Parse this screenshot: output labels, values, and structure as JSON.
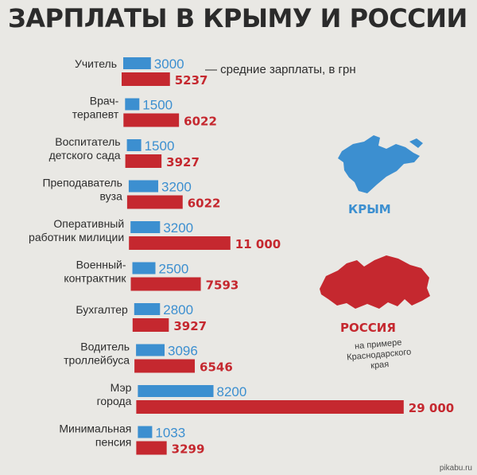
{
  "title": "ЗАРПЛАТЫ В КРЫМУ И РОССИИ",
  "note": "— средние зарплаты, в грн",
  "colors": {
    "crimea": "#3c8fd0",
    "russia": "#c5282f"
  },
  "legend": {
    "crimea": "КРЫМ",
    "russia": "РОССИЯ",
    "russia_note": [
      "на примере",
      "Краснодарского",
      "края"
    ]
  },
  "footer": "pikabu.ru",
  "chart_data": {
    "type": "bar",
    "orientation": "horizontal",
    "title": "ЗАРПЛАТЫ В КРЫМУ И РОССИИ",
    "unit": "грн",
    "categories": [
      [
        "Учитель"
      ],
      [
        "Врач-",
        "терапевт"
      ],
      [
        "Воспитатель",
        "детского сада"
      ],
      [
        "Преподаватель",
        "вуза"
      ],
      [
        "Оперативный",
        "работник милиции"
      ],
      [
        "Военный-",
        "контрактник"
      ],
      [
        "Бухгалтер"
      ],
      [
        "Водитель",
        "троллейбуса"
      ],
      [
        "Мэр",
        "города"
      ],
      [
        "Минимальная",
        "пенсия"
      ]
    ],
    "series": [
      {
        "name": "Крым",
        "values": [
          3000,
          1500,
          1500,
          3200,
          3200,
          2500,
          2800,
          3096,
          8200,
          1033
        ],
        "labels": [
          "3000",
          "1500",
          "1500",
          "3200",
          "3200",
          "2500",
          "2800",
          "3096",
          "8200",
          "1033"
        ]
      },
      {
        "name": "Россия",
        "values": [
          5237,
          6022,
          3927,
          6022,
          11000,
          7593,
          3927,
          6546,
          29000,
          3299
        ],
        "labels": [
          "5237",
          "6022",
          "3927",
          "6022",
          "11 000",
          "7593",
          "3927",
          "6546",
          "29 000",
          "3299"
        ]
      }
    ]
  }
}
